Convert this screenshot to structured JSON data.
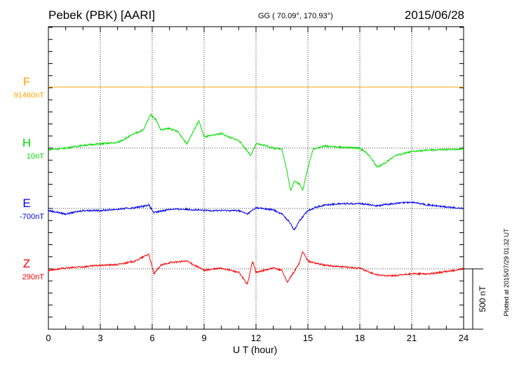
{
  "header": {
    "station": "Pebek (PBK)  [AARI]",
    "coords": "GG ( 70.09°, 170.93°)",
    "date": "2015/06/28"
  },
  "plotted_note": "Plotted at 2015/07/29 01:32 UT",
  "chart_data": {
    "type": "line",
    "xlabel": "U T (hour)",
    "xlim": [
      0,
      24
    ],
    "xticks": [
      "0",
      "3",
      "6",
      "9",
      "12",
      "15",
      "18",
      "21",
      "24"
    ],
    "scale_bar": "500 nT",
    "tick_interval_nT": 100,
    "series": [
      {
        "name": "F",
        "baseline_label": "91460nT",
        "color": "#ffa500",
        "x": [
          0,
          24
        ],
        "values": [
          0,
          0
        ]
      },
      {
        "name": "H",
        "baseline_label": "10nT",
        "color": "#00dd00",
        "x": [
          0,
          1,
          2,
          3,
          4,
          5,
          5.5,
          5.9,
          6.2,
          6.5,
          7,
          7.5,
          8,
          8.7,
          9,
          9.5,
          10,
          10.5,
          11,
          11.5,
          11.7,
          12,
          12.5,
          13,
          13.5,
          13.8,
          14,
          14.2,
          14.5,
          14.7,
          15,
          15.3,
          16,
          17,
          18,
          18.5,
          19,
          19.5,
          20,
          21,
          22,
          23,
          24
        ],
        "values": [
          -12,
          0,
          23,
          35,
          46,
          122,
          151,
          279,
          238,
          151,
          163,
          134,
          35,
          227,
          93,
          105,
          122,
          87,
          64,
          -23,
          -64,
          35,
          23,
          0,
          -6,
          -198,
          -354,
          -273,
          -296,
          -343,
          -168,
          -6,
          17,
          6,
          0,
          -52,
          -157,
          -122,
          -64,
          -29,
          -17,
          -12,
          -6
        ]
      },
      {
        "name": "E",
        "baseline_label": "-700nT",
        "color": "#0000ee",
        "x": [
          0,
          1,
          2,
          3,
          4,
          5,
          5.8,
          6.1,
          7,
          8,
          9,
          10,
          11,
          11.5,
          12,
          13,
          13.5,
          14,
          14.2,
          14.5,
          15,
          15.5,
          16,
          17,
          18,
          19,
          20,
          21,
          22,
          23,
          24
        ],
        "values": [
          -17,
          -46,
          -17,
          -17,
          -6,
          6,
          29,
          -35,
          -6,
          -6,
          -17,
          -17,
          -17,
          -46,
          6,
          -12,
          -46,
          -122,
          -180,
          -105,
          -17,
          12,
          29,
          41,
          41,
          23,
          41,
          52,
          29,
          12,
          0
        ]
      },
      {
        "name": "Z",
        "baseline_label": "290nT",
        "color": "#ff0000",
        "x": [
          0,
          1,
          2,
          3,
          4,
          5,
          5.8,
          6.1,
          6.5,
          7,
          8,
          9,
          10,
          11,
          11.5,
          11.8,
          12,
          13,
          13.5,
          13.8,
          14,
          14.5,
          14.7,
          15,
          16,
          17,
          18,
          19,
          20,
          21,
          22,
          23,
          24
        ],
        "values": [
          -12,
          6,
          17,
          29,
          35,
          64,
          122,
          -41,
          29,
          52,
          64,
          -12,
          6,
          -29,
          -128,
          64,
          -29,
          6,
          -12,
          -110,
          -70,
          46,
          145,
          64,
          29,
          17,
          6,
          -52,
          -58,
          -41,
          -41,
          -23,
          0
        ]
      }
    ]
  }
}
